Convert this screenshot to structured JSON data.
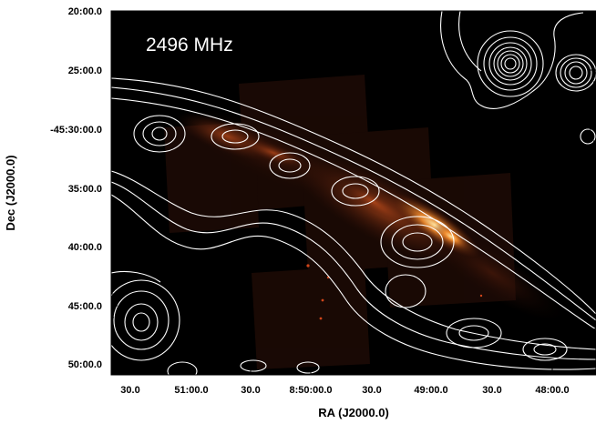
{
  "figure": {
    "frequency_label": "2496 MHz",
    "x_axis_title": "RA (J2000.0)",
    "y_axis_title": "Dec (J2000.0)",
    "x_ticks": [
      "30.0",
      "51:00.0",
      "30.0",
      "8:50:00.0",
      "30.0",
      "49:00.0",
      "30.0",
      "48:00.0"
    ],
    "y_ticks": [
      "20:00.0",
      "25:00.0",
      "-45:30:00.0",
      "35:00.0",
      "40:00.0",
      "45:00.0",
      "50:00.0"
    ],
    "colors": {
      "background": "#000000",
      "contour": "#ffffff",
      "emission_core": "#ffd27a",
      "emission_mid": "#c0501a",
      "emission_faint": "#3a1208"
    }
  }
}
